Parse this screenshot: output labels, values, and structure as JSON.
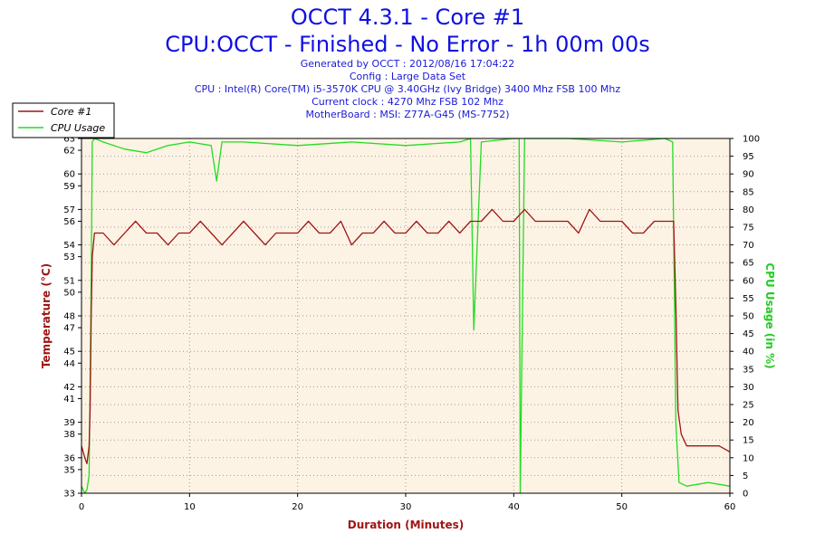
{
  "header": {
    "title": "OCCT 4.3.1 - Core #1",
    "subtitle": "CPU:OCCT - Finished - No Error - 1h 00m 00s",
    "info_lines": [
      "Generated by OCCT : 2012/08/16 17:04:22",
      "Config : Large Data Set",
      "CPU : Intel(R) Core(TM) i5-3570K CPU @ 3.40GHz (Ivy Bridge) 3400 Mhz FSB 100 Mhz",
      "Current clock : 4270 Mhz FSB 102 Mhz",
      "MotherBoard : MSI: Z77A-G45 (MS-7752)"
    ]
  },
  "colors": {
    "temperature": "#a01414",
    "cpu_usage": "#22dd22",
    "plot_background": "#fdf3e4",
    "grid": "#9a9a9a"
  },
  "chart_data": {
    "type": "line",
    "title": "OCCT 4.3.1 - Core #1",
    "xlabel": "Duration (Minutes)",
    "xlim": [
      0,
      60
    ],
    "x_ticks": [
      0,
      10,
      20,
      30,
      40,
      50,
      60
    ],
    "y_left": {
      "label": "Temperature (°C)",
      "ylim": [
        33,
        63
      ],
      "ticks": [
        33,
        35,
        36,
        38,
        39,
        41,
        42,
        44,
        45,
        47,
        48,
        50,
        51,
        53,
        54,
        56,
        57,
        59,
        60,
        62,
        63
      ]
    },
    "y_right": {
      "label": "CPU Usage (in %)",
      "ylim": [
        0,
        100
      ],
      "ticks": [
        0,
        5,
        10,
        15,
        20,
        25,
        30,
        35,
        40,
        45,
        50,
        55,
        60,
        65,
        70,
        75,
        80,
        85,
        90,
        95,
        100
      ]
    },
    "grid": true,
    "legend_position": "top-left",
    "series": [
      {
        "name": "Core #1",
        "axis": "left",
        "x": [
          0,
          0.3,
          0.5,
          0.7,
          0.8,
          0.9,
          1.0,
          1.2,
          1.5,
          2,
          3,
          4,
          5,
          6,
          7,
          8,
          9,
          10,
          11,
          12,
          13,
          14,
          15,
          16,
          17,
          18,
          19,
          20,
          21,
          22,
          23,
          24,
          25,
          26,
          27,
          28,
          29,
          30,
          31,
          32,
          33,
          34,
          35,
          36,
          37,
          38,
          39,
          40,
          41,
          42,
          43,
          44,
          45,
          46,
          47,
          48,
          49,
          50,
          51,
          52,
          53,
          54,
          54.5,
          54.8,
          55,
          55.2,
          55.5,
          56,
          57,
          58,
          59,
          60
        ],
        "values": [
          37,
          36,
          35.5,
          37,
          40,
          48,
          53,
          55,
          55,
          55,
          54,
          55,
          56,
          55,
          55,
          54,
          55,
          55,
          56,
          55,
          54,
          55,
          56,
          55,
          54,
          55,
          55,
          55,
          56,
          55,
          55,
          56,
          54,
          55,
          55,
          56,
          55,
          55,
          56,
          55,
          55,
          56,
          55,
          56,
          56,
          57,
          56,
          56,
          57,
          56,
          56,
          56,
          56,
          55,
          57,
          56,
          56,
          56,
          55,
          55,
          56,
          56,
          56,
          56,
          49,
          40,
          38,
          37,
          37,
          37,
          37,
          36.5
        ]
      },
      {
        "name": "CPU Usage",
        "axis": "right",
        "x": [
          0,
          0.3,
          0.5,
          0.7,
          0.9,
          1.0,
          1.2,
          2,
          4,
          6,
          8,
          10,
          12,
          12.5,
          13,
          15,
          20,
          25,
          30,
          35,
          36,
          36.3,
          37,
          40,
          40.5,
          40.6,
          41,
          45,
          50,
          54,
          54.7,
          55,
          55.3,
          56,
          58,
          60
        ],
        "values": [
          2,
          0,
          1,
          5,
          60,
          99,
          100,
          99,
          97,
          96,
          98,
          99,
          98,
          88,
          99,
          99,
          98,
          99,
          98,
          99,
          100,
          46,
          99,
          100,
          100,
          0,
          100,
          100,
          99,
          100,
          99,
          20,
          3,
          2,
          3,
          2
        ]
      }
    ]
  }
}
